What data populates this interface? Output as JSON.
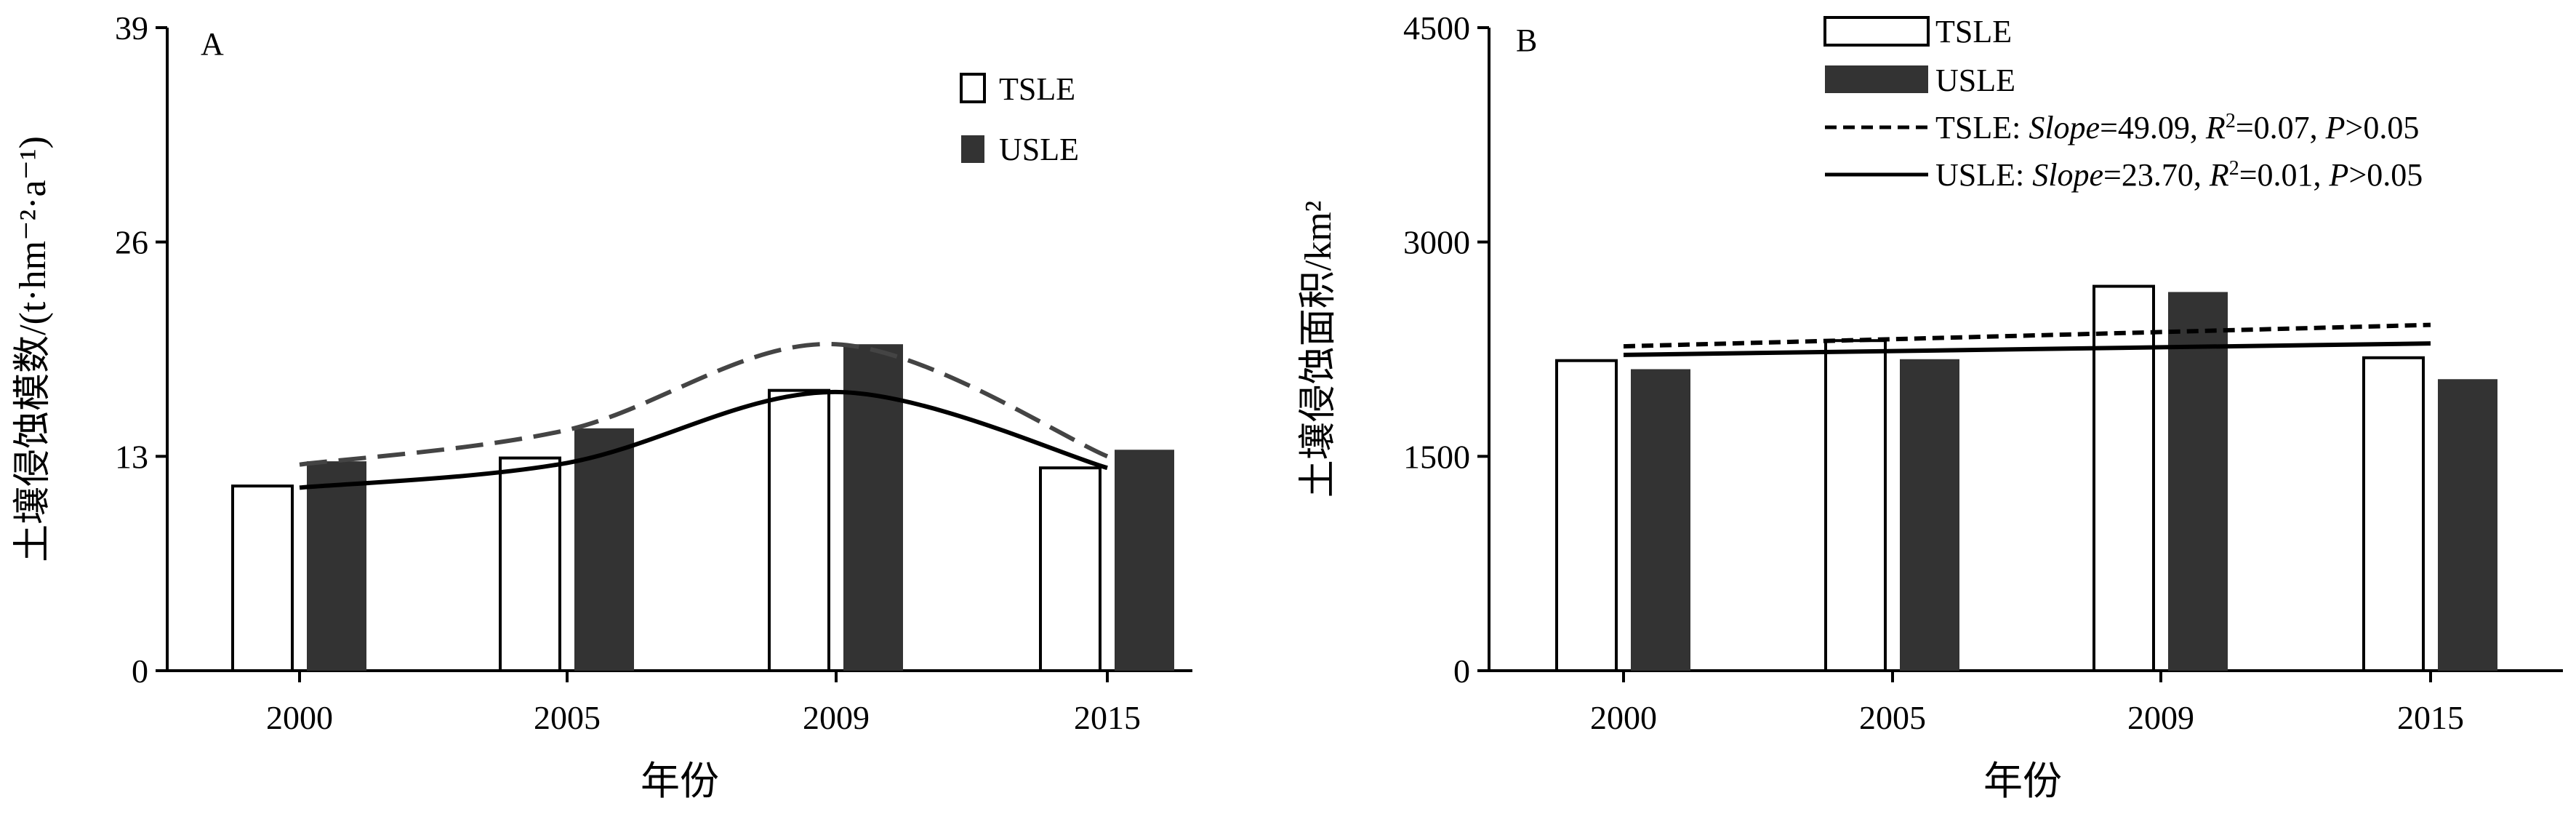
{
  "chart_data": [
    {
      "panel": "A",
      "type": "bar",
      "categories": [
        "2000",
        "2005",
        "2009",
        "2015"
      ],
      "ylabel": "土壤侵蚀模数/(t·hm⁻²·a⁻¹)",
      "xlabel": "年份",
      "ylim": [
        0,
        39
      ],
      "yticks": [
        "0",
        "13",
        "26",
        "39"
      ],
      "series": [
        {
          "name": "TSLE",
          "values": [
            11.2,
            12.9,
            17.0,
            12.3
          ],
          "color": "#ffffff"
        },
        {
          "name": "USLE",
          "values": [
            12.7,
            14.7,
            19.8,
            13.4
          ],
          "color": "#333333"
        }
      ],
      "trend_lines": [
        {
          "style": "dashed",
          "color": "#444444",
          "values": [
            12.5,
            14.6,
            19.8,
            13.0
          ]
        },
        {
          "style": "solid",
          "color": "#000000",
          "values": [
            11.1,
            12.6,
            16.9,
            12.3
          ]
        }
      ]
    },
    {
      "panel": "B",
      "type": "bar",
      "categories": [
        "2000",
        "2005",
        "2009",
        "2015"
      ],
      "ylabel": "土壤侵蚀面积/km²",
      "xlabel": "年份",
      "ylim": [
        0,
        4500
      ],
      "yticks": [
        "0",
        "1500",
        "3000",
        "4500"
      ],
      "series": [
        {
          "name": "TSLE",
          "values": [
            2170,
            2310,
            2690,
            2190
          ],
          "color": "#ffffff"
        },
        {
          "name": "USLE",
          "values": [
            2110,
            2180,
            2650,
            2040
          ],
          "color": "#333333"
        }
      ],
      "trend_lines": [
        {
          "style": "dashed",
          "color": "#000000",
          "values": [
            2270,
            2420
          ],
          "text": {
            "name": "TSLE: ",
            "k1": "Slope",
            "v1": "=49.09, ",
            "k2": "R",
            "sup": "2",
            "v2": "=0.07, ",
            "k3": "P",
            "v3": ">0.05"
          }
        },
        {
          "style": "solid",
          "color": "#000000",
          "values": [
            2210,
            2290
          ],
          "text": {
            "name": "USLE: ",
            "k1": "Slope",
            "v1": "=23.70, ",
            "k2": "R",
            "sup": "2",
            "v2": "=0.01, ",
            "k3": "P",
            "v3": ">0.05"
          }
        }
      ]
    }
  ]
}
